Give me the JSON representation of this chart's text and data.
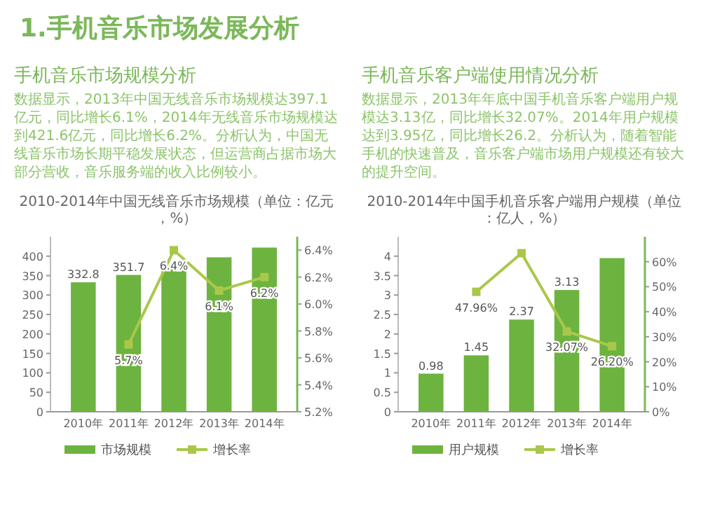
{
  "chart_data": [
    {
      "type": "other",
      "title": "1.手机音乐市场发展分析"
    },
    {
      "type": "bar",
      "subtitle": "手机音乐市场规模分析",
      "annotations": [
        "数据显示，2013年中国无线音乐市场规模达397.1亿元，同比增长6.1%，2014年无线音乐市场规模达到421.6亿元，同比增长6.2%。分析认为，中国无线音乐市场长期平稳发展状态，但运营商占据市场大部分营收，音乐服务端的收入比例较小。"
      ],
      "title": "2010-2014年中国无线音乐市场规模（单位：亿元，%）",
      "categories": [
        "2010年",
        "2011年",
        "2012年",
        "2013年",
        "2014年"
      ],
      "series": [
        {
          "name": "市场规模",
          "type": "bar",
          "color": "#6db33f",
          "values": [
            332.8,
            351.7,
            374,
            397,
            422
          ],
          "value_labels": [
            "332.8",
            "351.7",
            null,
            null,
            null
          ]
        },
        {
          "name": "增长率",
          "type": "line",
          "axis": "y2",
          "color": "#a9c84a",
          "marker": "square",
          "values": [
            null,
            5.7,
            6.4,
            6.1,
            6.2
          ],
          "value_labels": [
            null,
            "5.7%",
            "6.4%",
            "6.1%",
            "6.2%"
          ]
        }
      ],
      "ylim": [
        0,
        450
      ],
      "yticks": [
        0,
        50,
        100,
        150,
        200,
        250,
        300,
        350,
        400
      ],
      "y2lim": [
        5.2,
        6.5
      ],
      "y2ticks": [
        {
          "value": 5.2,
          "label": "5.2%"
        },
        {
          "value": 5.4,
          "label": "5.4%"
        },
        {
          "value": 5.6,
          "label": "5.6%"
        },
        {
          "value": 5.8,
          "label": "5.8%"
        },
        {
          "value": 6.0,
          "label": "6.0%"
        },
        {
          "value": 6.2,
          "label": "6.2%"
        },
        {
          "value": 6.4,
          "label": "6.4%"
        }
      ],
      "legend": "bottom"
    },
    {
      "type": "bar",
      "subtitle": "手机音乐客户端使用情况分析",
      "annotations": [
        "数据显示，2013年年底中国手机音乐客户端用户规模达3.13亿，同比增长32.07%。2014年用户规模达到3.95亿，同比增长26.2。分析认为，随着智能手机的快速普及，音乐客户端市场用户规模还有较大的提升空间。"
      ],
      "title": "2010-2014年中国手机音乐客户端用户规模（单位：亿人，%）",
      "categories": [
        "2010年",
        "2011年",
        "2012年",
        "2013年",
        "2014年"
      ],
      "series": [
        {
          "name": "用户规模",
          "type": "bar",
          "color": "#6db33f",
          "values": [
            0.98,
            1.45,
            2.37,
            3.13,
            3.95
          ],
          "value_labels": [
            "0.98",
            "1.45",
            "2.37",
            "3.13",
            null
          ]
        },
        {
          "name": "增长率",
          "type": "line",
          "axis": "y2",
          "color": "#a9c84a",
          "marker": "square",
          "values": [
            null,
            47.96,
            63.4,
            32.07,
            26.2
          ],
          "value_labels": [
            null,
            "47.96%",
            null,
            "32.07%",
            "26.20%"
          ]
        }
      ],
      "ylim": [
        0,
        4.5
      ],
      "yticks": [
        0,
        0.5,
        1,
        1.5,
        2,
        2.5,
        3,
        3.5,
        4
      ],
      "y2lim": [
        0,
        70
      ],
      "y2ticks": [
        {
          "value": 0,
          "label": "0%"
        },
        {
          "value": 10,
          "label": "10%"
        },
        {
          "value": 20,
          "label": "20%"
        },
        {
          "value": 30,
          "label": "30%"
        },
        {
          "value": 40,
          "label": "40%"
        },
        {
          "value": 50,
          "label": "50%"
        },
        {
          "value": 60,
          "label": "60%"
        }
      ],
      "legend": "bottom"
    }
  ]
}
